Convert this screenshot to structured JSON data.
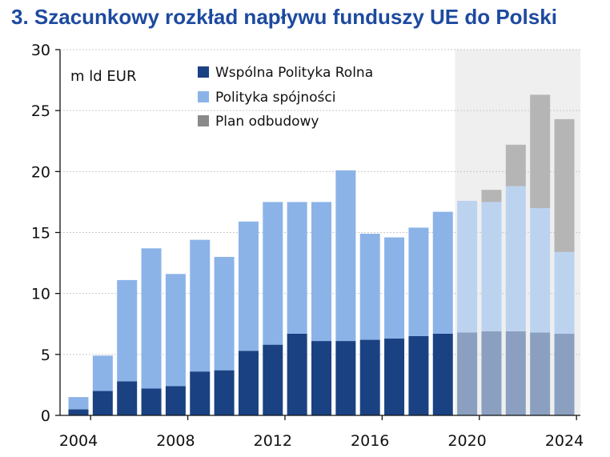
{
  "title": "3. Szacunkowy rozkład napływu funduszy UE do Polski",
  "chart_data": {
    "type": "bar",
    "stacked": true,
    "unit_label": "m ld EUR",
    "categories": [
      2004,
      2005,
      2006,
      2007,
      2008,
      2009,
      2010,
      2011,
      2012,
      2013,
      2014,
      2015,
      2016,
      2017,
      2018,
      2019,
      2020,
      2021,
      2022,
      2023,
      2024
    ],
    "x_tick_labels": [
      "2004",
      "2008",
      "2012",
      "2016",
      "2020",
      "2024"
    ],
    "ylim": [
      0,
      30
    ],
    "y_ticks": [
      0,
      5,
      10,
      15,
      20,
      25,
      30
    ],
    "grid": true,
    "legend_position": "top-left",
    "forecast_from": 2020,
    "series": [
      {
        "name": "Wspólna Polityka Rolna",
        "color": "#1a4282",
        "forecast_color": "#8ba0c0",
        "values": [
          0.5,
          2.0,
          2.8,
          2.2,
          2.4,
          3.6,
          3.7,
          5.3,
          5.8,
          6.7,
          6.1,
          6.1,
          6.2,
          6.3,
          6.5,
          6.7,
          6.8,
          6.9,
          6.9,
          6.8,
          6.7
        ]
      },
      {
        "name": "Polityka spójności",
        "color": "#8bb3e8",
        "forecast_color": "#bcd3f0",
        "values": [
          1.0,
          2.9,
          8.3,
          11.5,
          9.2,
          10.8,
          9.3,
          10.6,
          11.7,
          10.8,
          11.4,
          14.0,
          8.7,
          8.3,
          8.9,
          10.0,
          10.8,
          10.6,
          11.9,
          10.2,
          6.7
        ]
      },
      {
        "name": "Plan odbudowy",
        "color": "#8a8a8a",
        "forecast_color": "#b5b5b5",
        "values": [
          0,
          0,
          0,
          0,
          0,
          0,
          0,
          0,
          0,
          0,
          0,
          0,
          0,
          0,
          0,
          0,
          0,
          1.0,
          3.4,
          9.3,
          10.9
        ]
      }
    ]
  }
}
